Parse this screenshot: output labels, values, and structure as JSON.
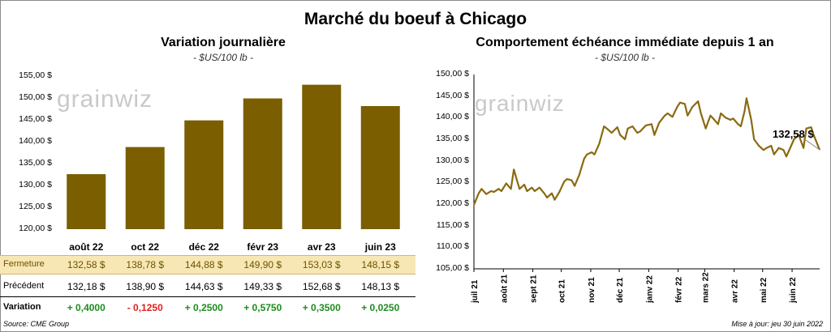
{
  "title": "Marché du boeuf à Chicago",
  "left_panel": {
    "title": "Variation  journalière",
    "subtitle": "- $US/100 lb -"
  },
  "right_panel": {
    "title": "Comportement  échéance immédiate depuis 1 an",
    "subtitle": "- $US/100 lb -",
    "last_label": "132,58 $"
  },
  "table": {
    "row1_label": "Fermeture",
    "row2_label": "Précédent",
    "row3_label": "Variation",
    "fermeture": [
      "132,58  $",
      "138,78  $",
      "144,88  $",
      "149,90  $",
      "153,03  $",
      "148,15  $"
    ],
    "precedent": [
      "132,18  $",
      "138,90  $",
      "144,63  $",
      "149,33  $",
      "152,68  $",
      "148,13  $"
    ],
    "variation": [
      "+ 0,4000",
      "- 0,1250",
      "+ 0,2500",
      "+ 0,5750",
      "+ 0,3500",
      "+ 0,0250"
    ],
    "variation_sign": [
      "pos",
      "neg",
      "pos",
      "pos",
      "pos",
      "pos"
    ]
  },
  "source": "Source: CME Group",
  "updated": "Mise à jour: jeu 30 juin 2022",
  "watermark": "grainwiz",
  "colors": {
    "bar": "#7a5e00",
    "line": "#8a6a10",
    "table_highlight": "#f7e7b4",
    "positive": "#1e8c1e",
    "negative": "#e01f1f"
  },
  "chart_data": [
    {
      "type": "bar",
      "categories": [
        "août 22",
        "oct 22",
        "déc 22",
        "févr 23",
        "avr 23",
        "juin 23"
      ],
      "values": [
        132.58,
        138.78,
        144.88,
        149.9,
        153.03,
        148.15
      ],
      "ylim": [
        120,
        155
      ],
      "yticks": [
        "120,00 $",
        "125,00 $",
        "130,00 $",
        "135,00 $",
        "140,00 $",
        "145,00 $",
        "150,00 $",
        "155,00 $"
      ],
      "grid": false
    },
    {
      "type": "line",
      "ylim": [
        105,
        150
      ],
      "yticks": [
        "105,00 $",
        "110,00 $",
        "115,00 $",
        "120,00 $",
        "125,00 $",
        "130,00 $",
        "135,00 $",
        "140,00 $",
        "145,00 $",
        "150,00 $"
      ],
      "xticks": [
        "juil 21",
        "août 21",
        "sept 21",
        "oct 21",
        "nov 21",
        "déc 21",
        "janv 22",
        "févr 22",
        "mars 22",
        "avr 22",
        "mai 22",
        "juin 22"
      ],
      "series": [
        {
          "x": [
            "2021-07-01",
            "2021-07-06",
            "2021-07-09",
            "2021-07-14",
            "2021-07-19",
            "2021-07-22",
            "2021-07-27",
            "2021-07-30",
            "2021-08-04",
            "2021-08-09",
            "2021-08-12",
            "2021-08-16",
            "2021-08-18",
            "2021-08-23",
            "2021-08-26",
            "2021-08-31",
            "2021-09-03",
            "2021-09-08",
            "2021-09-13",
            "2021-09-16",
            "2021-09-21",
            "2021-09-24",
            "2021-09-29",
            "2021-10-04",
            "2021-10-07",
            "2021-10-12",
            "2021-10-15",
            "2021-10-20",
            "2021-10-25",
            "2021-10-28",
            "2021-11-02",
            "2021-11-05",
            "2021-11-10",
            "2021-11-15",
            "2021-11-18",
            "2021-11-23",
            "2021-11-29",
            "2021-12-02",
            "2021-12-07",
            "2021-12-10",
            "2021-12-15",
            "2021-12-20",
            "2021-12-23",
            "2021-12-29",
            "2022-01-04",
            "2022-01-07",
            "2022-01-12",
            "2022-01-18",
            "2022-01-21",
            "2022-01-26",
            "2022-01-31",
            "2022-02-03",
            "2022-02-08",
            "2022-02-11",
            "2022-02-16",
            "2022-02-22",
            "2022-02-25",
            "2022-03-02",
            "2022-03-07",
            "2022-03-10",
            "2022-03-15",
            "2022-03-18",
            "2022-03-23",
            "2022-03-28",
            "2022-03-31",
            "2022-04-05",
            "2022-04-08",
            "2022-04-12",
            "2022-04-14",
            "2022-04-19",
            "2022-04-22",
            "2022-04-27",
            "2022-05-02",
            "2022-05-05",
            "2022-05-10",
            "2022-05-13",
            "2022-05-18",
            "2022-05-23",
            "2022-05-26",
            "2022-05-31",
            "2022-06-03",
            "2022-06-08",
            "2022-06-13",
            "2022-06-16",
            "2022-06-21",
            "2022-06-24",
            "2022-06-30"
          ],
          "values": [
            119.8,
            122.5,
            123.5,
            122.3,
            123.0,
            122.8,
            123.5,
            123.0,
            124.8,
            123.5,
            128.0,
            125.0,
            123.5,
            124.5,
            123.0,
            123.8,
            123.0,
            123.8,
            122.5,
            121.5,
            122.5,
            121.0,
            122.8,
            125.2,
            125.8,
            125.5,
            124.2,
            126.8,
            130.5,
            131.5,
            132.0,
            131.5,
            134.0,
            138.0,
            137.5,
            136.5,
            137.8,
            136.0,
            135.0,
            137.5,
            138.0,
            136.5,
            136.8,
            138.2,
            138.5,
            136.0,
            138.8,
            140.5,
            141.0,
            140.2,
            142.5,
            143.5,
            143.2,
            140.5,
            142.5,
            143.8,
            141.0,
            137.5,
            140.5,
            139.8,
            138.5,
            141.0,
            140.0,
            139.5,
            139.8,
            138.5,
            138.0,
            141.5,
            144.5,
            139.5,
            135.0,
            133.5,
            132.5,
            133.0,
            133.5,
            131.5,
            133.0,
            132.5,
            131.0,
            133.5,
            135.0,
            136.0,
            133.0,
            137.5,
            137.8,
            135.8,
            132.58
          ]
        }
      ]
    }
  ]
}
